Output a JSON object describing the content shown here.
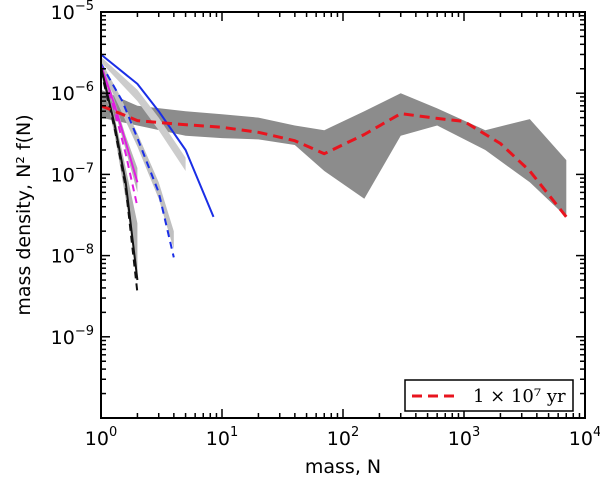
{
  "chart_data": {
    "type": "line",
    "xscale": "log",
    "yscale": "log",
    "xlabel": "mass, N",
    "ylabel": "mass density, N² f(N)",
    "xlim": [
      1,
      10000
    ],
    "ylim": [
      1e-10,
      1e-05
    ],
    "x_ticks": [
      {
        "value": 1,
        "base": "10",
        "exp": "0"
      },
      {
        "value": 10,
        "base": "10",
        "exp": "1"
      },
      {
        "value": 100,
        "base": "10",
        "exp": "2"
      },
      {
        "value": 1000,
        "base": "10",
        "exp": "3"
      },
      {
        "value": 10000,
        "base": "10",
        "exp": "4"
      }
    ],
    "y_ticks": [
      {
        "value": 1e-09,
        "base": "10",
        "exp": "−9"
      },
      {
        "value": 1e-08,
        "base": "10",
        "exp": "−8"
      },
      {
        "value": 1e-07,
        "base": "10",
        "exp": "−7"
      },
      {
        "value": 1e-06,
        "base": "10",
        "exp": "−6"
      },
      {
        "value": 1e-05,
        "base": "10",
        "exp": "−5"
      }
    ],
    "legend": {
      "position": "bottom-right",
      "label": "1 × 10⁷ yr",
      "color": "#e8141e",
      "style": "dashed"
    },
    "bands": [
      {
        "name": "band-1e7-yr",
        "color": "#8c8c8c",
        "x": [
          1,
          2,
          5,
          10,
          20,
          40,
          70,
          150,
          300,
          600,
          1500,
          3500,
          7000
        ],
        "upper": [
          1.1e-06,
          7e-07,
          6e-07,
          5.5e-07,
          5e-07,
          4e-07,
          3.5e-07,
          6e-07,
          1e-06,
          6.5e-07,
          3.5e-07,
          4.8e-07,
          1.5e-07
        ],
        "lower": [
          5e-07,
          4e-07,
          3e-07,
          2.8e-07,
          2.7e-07,
          2.3e-07,
          1.1e-07,
          5e-08,
          3e-07,
          4e-07,
          2e-07,
          8e-08,
          3e-08
        ]
      },
      {
        "name": "band-early-1",
        "color": "#c0c0c0",
        "x": [
          1,
          1.4,
          2,
          3,
          4
        ],
        "upper": [
          2.5e-06,
          1e-06,
          3.2e-07,
          8e-08,
          2e-08
        ],
        "lower": [
          2e-06,
          7e-07,
          2.2e-07,
          5e-08,
          1.2e-08
        ]
      },
      {
        "name": "band-early-2",
        "color": "#b5b5b5",
        "x": [
          1,
          1.3,
          1.6,
          2
        ],
        "upper": [
          2.5e-06,
          8e-07,
          3e-07,
          1.2e-07
        ],
        "lower": [
          2e-06,
          6e-07,
          2e-07,
          6e-08
        ]
      },
      {
        "name": "band-early-3",
        "color": "#b0b0b0",
        "x": [
          1,
          1.3,
          1.6,
          2
        ],
        "upper": [
          2.4e-06,
          5e-07,
          1.2e-07,
          2.5e-08
        ],
        "lower": [
          1.8e-06,
          3e-07,
          5e-08,
          6e-09
        ]
      },
      {
        "name": "band-early-4",
        "color": "#cccccc",
        "x": [
          1,
          2,
          3,
          5
        ],
        "upper": [
          2.8e-06,
          1.1e-06,
          5e-07,
          1.6e-07
        ],
        "lower": [
          2.4e-06,
          8e-07,
          3.5e-07,
          1.1e-07
        ]
      }
    ],
    "series": [
      {
        "name": "1 × 10⁷ yr",
        "color": "#e8141e",
        "dash": "10,6",
        "width": 3,
        "x": [
          1,
          1.5,
          2,
          4,
          10,
          20,
          40,
          70,
          150,
          300,
          600,
          1000,
          2000,
          3500,
          7000
        ],
        "y": [
          7e-07,
          5.5e-07,
          4.6e-07,
          4.2e-07,
          3.8e-07,
          3.3e-07,
          2.6e-07,
          1.8e-07,
          3.1e-07,
          5.6e-07,
          4.9e-07,
          4.5e-07,
          2.4e-07,
          1.1e-07,
          3e-08
        ]
      },
      {
        "name": "blue-solid",
        "color": "#1a2ee6",
        "dash": "",
        "width": 2,
        "x": [
          1,
          2,
          3,
          5,
          8.5
        ],
        "y": [
          3e-06,
          1.3e-06,
          6e-07,
          2e-07,
          3e-08
        ]
      },
      {
        "name": "blue-dashed",
        "color": "#1a2ee6",
        "dash": "7,5",
        "width": 2,
        "x": [
          1,
          1.5,
          2,
          3,
          4
        ],
        "y": [
          2.3e-06,
          8e-07,
          2.8e-07,
          6e-08,
          9.5e-09
        ]
      },
      {
        "name": "magenta-solid",
        "color": "#e01ee0",
        "dash": "",
        "width": 2,
        "x": [
          1,
          1.3,
          1.6,
          2
        ],
        "y": [
          2.2e-06,
          7e-07,
          2.5e-07,
          8e-08
        ]
      },
      {
        "name": "magenta-dashed",
        "color": "#e01ee0",
        "dash": "7,5",
        "width": 2,
        "x": [
          1,
          1.3,
          1.6,
          2
        ],
        "y": [
          2e-06,
          6e-07,
          1.8e-07,
          4e-08
        ]
      },
      {
        "name": "black-solid",
        "color": "#111111",
        "dash": "",
        "width": 2,
        "x": [
          1,
          1.3,
          1.6,
          2
        ],
        "y": [
          2.1e-06,
          4e-07,
          8e-08,
          5e-09
        ]
      },
      {
        "name": "black-dashed",
        "color": "#111111",
        "dash": "7,5",
        "width": 2,
        "x": [
          1,
          1.3,
          1.6,
          2
        ],
        "y": [
          1.9e-06,
          3.6e-07,
          7e-08,
          3.5e-09
        ]
      }
    ]
  }
}
